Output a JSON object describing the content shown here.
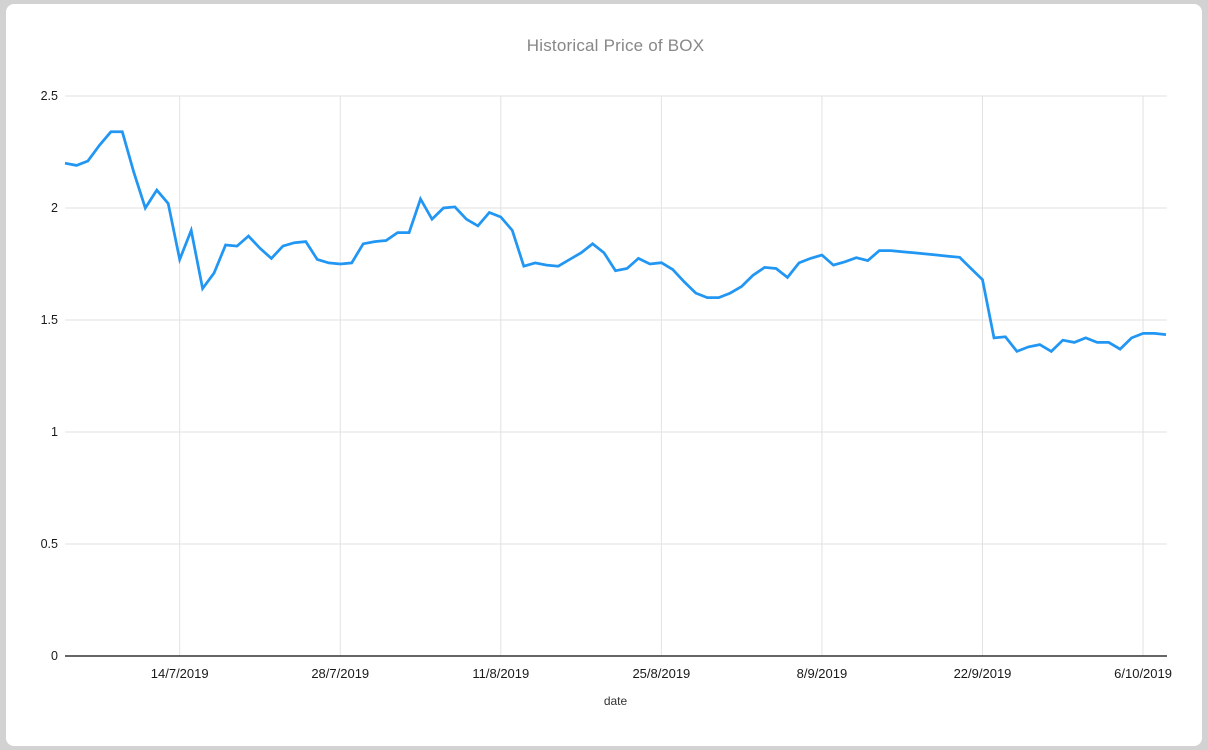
{
  "chart_data": {
    "type": "line",
    "title": "Historical Price of BOX",
    "xlabel": "date",
    "ylabel": "",
    "ylim": [
      0,
      2.5
    ],
    "grid": true,
    "legend": "none",
    "line_color": "#2196f3",
    "grid_color": "#e2e2e2",
    "axis_color": "#333333",
    "title_color": "#878787",
    "tick_label_color": "#1a1a1a",
    "y_ticks": [
      {
        "label": "0",
        "value": 0
      },
      {
        "label": "0.5",
        "value": 0.5
      },
      {
        "label": "1",
        "value": 1
      },
      {
        "label": "1.5",
        "value": 1.5
      },
      {
        "label": "2",
        "value": 2
      },
      {
        "label": "2.5",
        "value": 2.5
      }
    ],
    "x_ticks": [
      {
        "label": "14/7/2019",
        "index": 10
      },
      {
        "label": "28/7/2019",
        "index": 24
      },
      {
        "label": "11/8/2019",
        "index": 38
      },
      {
        "label": "25/8/2019",
        "index": 52
      },
      {
        "label": "8/9/2019",
        "index": 66
      },
      {
        "label": "22/9/2019",
        "index": 80
      },
      {
        "label": "6/10/2019",
        "index": 94
      }
    ],
    "values": [
      2.2,
      2.19,
      2.21,
      2.28,
      2.34,
      2.34,
      2.16,
      2.0,
      2.08,
      2.02,
      1.77,
      1.9,
      1.64,
      1.71,
      1.835,
      1.83,
      1.875,
      1.82,
      1.775,
      1.83,
      1.845,
      1.85,
      1.77,
      1.755,
      1.75,
      1.755,
      1.84,
      1.85,
      1.855,
      1.89,
      1.89,
      2.04,
      1.95,
      2.0,
      2.005,
      1.95,
      1.92,
      1.98,
      1.96,
      1.9,
      1.74,
      1.755,
      1.745,
      1.74,
      1.77,
      1.8,
      1.84,
      1.8,
      1.72,
      1.73,
      1.775,
      1.75,
      1.756,
      1.725,
      1.67,
      1.62,
      1.6,
      1.6,
      1.62,
      1.65,
      1.7,
      1.735,
      1.73,
      1.69,
      1.755,
      1.775,
      1.79,
      1.745,
      1.76,
      1.778,
      1.765,
      1.81,
      1.81,
      1.805,
      1.8,
      1.795,
      1.79,
      1.785,
      1.78,
      1.73,
      1.68,
      1.42,
      1.425,
      1.36,
      1.38,
      1.39,
      1.36,
      1.41,
      1.4,
      1.42,
      1.4,
      1.4,
      1.37,
      1.42,
      1.44,
      1.44,
      1.435
    ]
  }
}
